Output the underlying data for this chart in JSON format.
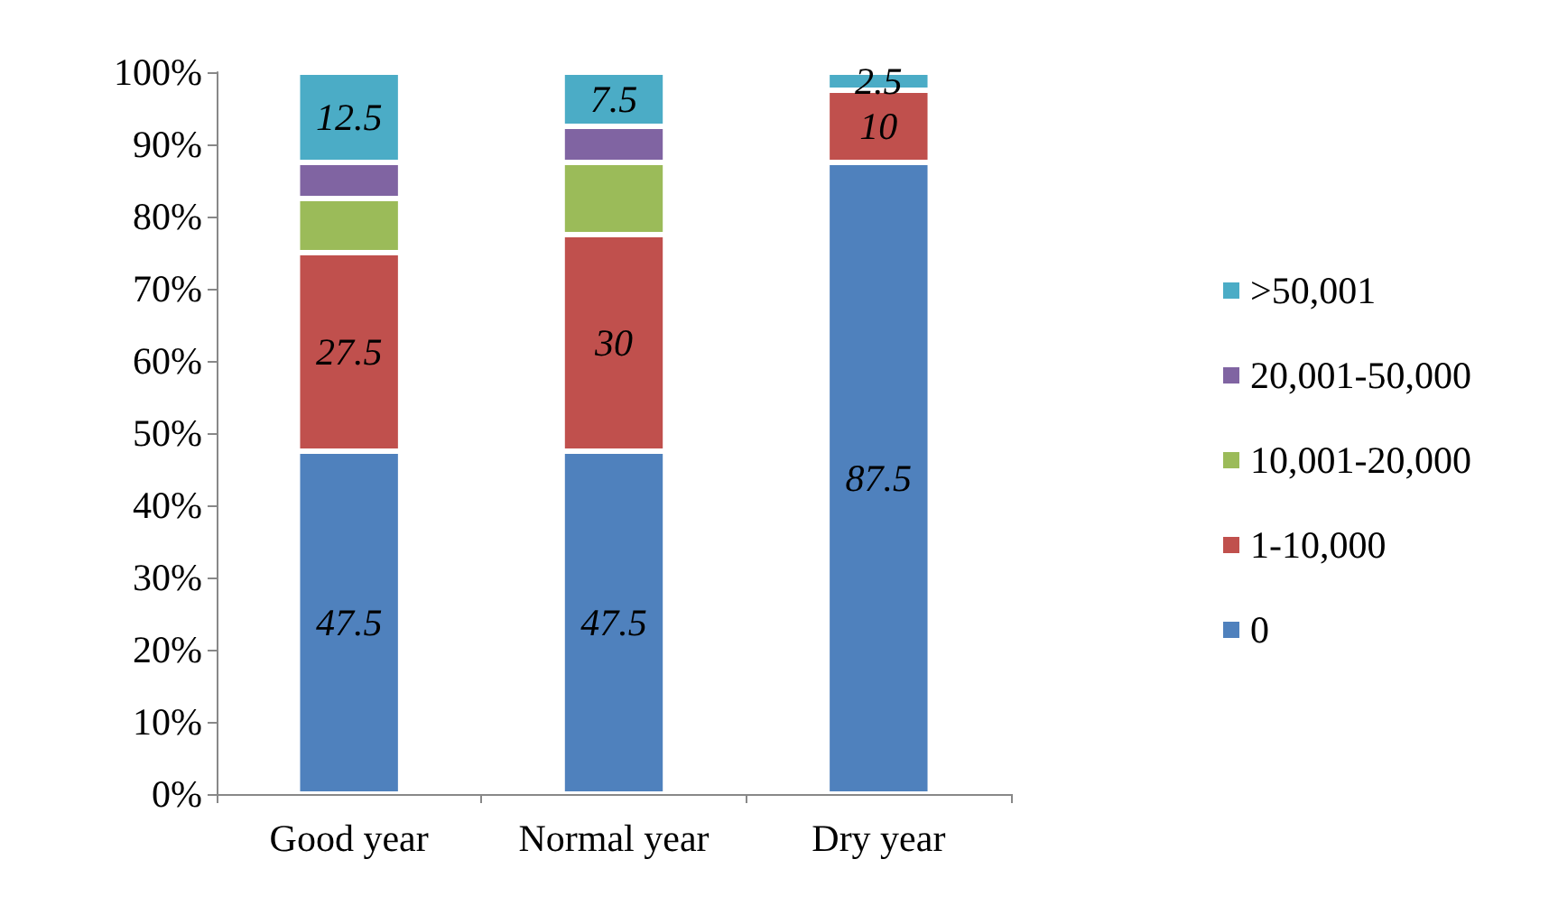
{
  "chart_data": {
    "type": "bar",
    "stacked": true,
    "categories": [
      "Good year",
      "Normal year",
      "Dry year"
    ],
    "series": [
      {
        "name": "0",
        "color": "#4f81bd",
        "values": [
          47.5,
          47.5,
          87.5
        ],
        "value_labels": [
          "47.5",
          "47.5",
          "87.5"
        ]
      },
      {
        "name": "1-10,000",
        "color": "#c0504d",
        "values": [
          27.5,
          30,
          10
        ],
        "value_labels": [
          "27.5",
          "30",
          "10"
        ]
      },
      {
        "name": "10,001-20,000",
        "color": "#9bbb59",
        "values": [
          7.5,
          10,
          0
        ],
        "value_labels": [
          null,
          null,
          null
        ]
      },
      {
        "name": "20,001-50,000",
        "color": "#8064a2",
        "values": [
          5,
          5,
          0
        ],
        "value_labels": [
          null,
          null,
          null
        ]
      },
      {
        "name": ">50,001",
        "color": "#4bacc6",
        "values": [
          12.5,
          7.5,
          2.5
        ],
        "value_labels": [
          "12.5",
          "7.5",
          "2.5"
        ]
      }
    ],
    "ylim": [
      0,
      100
    ],
    "yticks": [
      {
        "value": 0,
        "label": "0%"
      },
      {
        "value": 10,
        "label": "10%"
      },
      {
        "value": 20,
        "label": "20%"
      },
      {
        "value": 30,
        "label": "30%"
      },
      {
        "value": 40,
        "label": "40%"
      },
      {
        "value": 50,
        "label": "50%"
      },
      {
        "value": 60,
        "label": "60%"
      },
      {
        "value": 70,
        "label": "70%"
      },
      {
        "value": 80,
        "label": "80%"
      },
      {
        "value": 90,
        "label": "90%"
      },
      {
        "value": 100,
        "label": "100%"
      }
    ],
    "grid": false,
    "legend": "right"
  }
}
